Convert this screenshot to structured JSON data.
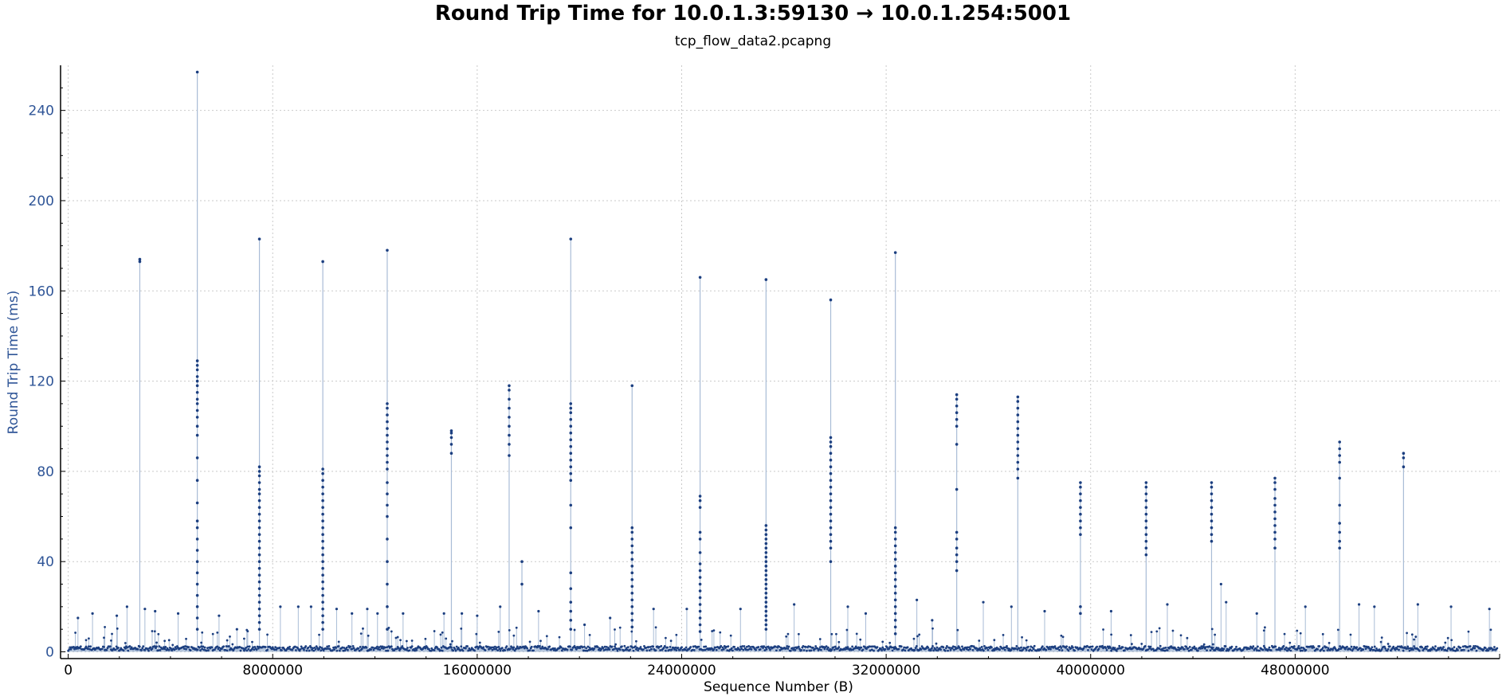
{
  "chart_data": {
    "type": "scatter",
    "title": "Round Trip Time for 10.0.1.3:59130 → 10.0.1.254:5001",
    "subtitle": "tcp_flow_data2.pcapng",
    "xlabel": "Sequence Number (B)",
    "ylabel": "Round Trip Time (ms)",
    "xlim": [
      -300000,
      56000000
    ],
    "ylim": [
      -3,
      260
    ],
    "xticks": [
      0,
      8000000,
      16000000,
      24000000,
      32000000,
      40000000,
      48000000
    ],
    "yticks": [
      0,
      40,
      80,
      120,
      160,
      200,
      240
    ],
    "grid": true,
    "impulse_lines": true,
    "colors": {
      "points": "#1c3f80",
      "stems": "#a9bcd6",
      "grid": "#c9c9c9",
      "ylabel": "#2f5597"
    },
    "baseline": {
      "x_range": [
        0,
        55900000
      ],
      "typical_rtt_ms": 1.5
    },
    "series": [
      {
        "values_note": "",
        "bursts": [
          {
            "x": 2800000,
            "y_values": [
              174,
              173
            ]
          },
          {
            "x": 5050000,
            "y_values": [
              257,
              129,
              127,
              125,
              122,
              120,
              118,
              115,
              112,
              110,
              107,
              104,
              100,
              96,
              86,
              76,
              66,
              58,
              55,
              50,
              45,
              40,
              35,
              30,
              25,
              20,
              15,
              10
            ]
          },
          {
            "x": 7480000,
            "y_values": [
              183,
              82,
              80,
              78,
              75,
              72,
              70,
              67,
              64,
              61,
              58,
              55,
              52,
              49,
              46,
              43,
              40,
              37,
              34,
              31,
              28,
              25,
              22,
              19,
              16,
              13,
              10
            ]
          },
          {
            "x": 9960000,
            "y_values": [
              173,
              81,
              79,
              76,
              73,
              70,
              67,
              64,
              61,
              58,
              55,
              52,
              49,
              46,
              43,
              40,
              37,
              34,
              31,
              28,
              25,
              22,
              19,
              16,
              13,
              10
            ]
          },
          {
            "x": 12480000,
            "y_values": [
              178,
              110,
              108,
              105,
              102,
              99,
              96,
              93,
              90,
              87,
              84,
              81,
              75,
              70,
              65,
              60,
              50,
              40,
              30,
              20,
              10
            ]
          },
          {
            "x": 14990000,
            "y_values": [
              98,
              97,
              95,
              92,
              88
            ]
          },
          {
            "x": 17250000,
            "y_values": [
              118,
              116,
              112,
              108,
              104,
              100,
              96,
              92,
              87
            ]
          },
          {
            "x": 17750000,
            "y_values": [
              40,
              30
            ]
          },
          {
            "x": 19660000,
            "y_values": [
              183,
              110,
              108,
              106,
              103,
              100,
              97,
              94,
              91,
              88,
              85,
              82,
              79,
              76,
              65,
              55,
              35,
              28,
              22,
              18,
              14,
              10
            ]
          },
          {
            "x": 22060000,
            "y_values": [
              118,
              55,
              53,
              50,
              47,
              44,
              41,
              38,
              35,
              32,
              29,
              26,
              23,
              20,
              17,
              14,
              11
            ]
          },
          {
            "x": 24720000,
            "y_values": [
              166,
              69,
              67,
              64,
              53,
              50,
              44,
              39,
              36,
              33,
              30,
              27,
              24,
              21,
              18,
              15,
              12,
              9
            ]
          },
          {
            "x": 27300000,
            "y_values": [
              165,
              56,
              54,
              52,
              50,
              48,
              46,
              44,
              42,
              40,
              38,
              36,
              34,
              32,
              30,
              28,
              26,
              24,
              22,
              20,
              18,
              16,
              14,
              12,
              10
            ]
          },
          {
            "x": 29830000,
            "y_values": [
              156,
              95,
              93,
              91,
              88,
              85,
              82,
              79,
              76,
              73,
              70,
              67,
              64,
              61,
              58,
              55,
              52,
              49,
              46,
              40
            ]
          },
          {
            "x": 32360000,
            "y_values": [
              177,
              55,
              53,
              50,
              47,
              44,
              41,
              38,
              35,
              32,
              29,
              26,
              23,
              20,
              17,
              14,
              11,
              8
            ]
          },
          {
            "x": 34760000,
            "y_values": [
              114,
              112,
              109,
              106,
              103,
              100,
              92,
              72,
              53,
              50,
              46,
              43,
              40,
              36
            ]
          },
          {
            "x": 37150000,
            "y_values": [
              113,
              111,
              108,
              105,
              102,
              99,
              96,
              93,
              90,
              87,
              84,
              81,
              77
            ]
          },
          {
            "x": 39600000,
            "y_values": [
              75,
              73,
              70,
              67,
              64,
              61,
              58,
              55,
              52,
              20,
              17
            ]
          },
          {
            "x": 42170000,
            "y_values": [
              75,
              73,
              70,
              67,
              64,
              61,
              58,
              55,
              52,
              49,
              46,
              43
            ]
          },
          {
            "x": 44730000,
            "y_values": [
              75,
              73,
              70,
              67,
              64,
              61,
              58,
              55,
              52,
              49
            ]
          },
          {
            "x": 47210000,
            "y_values": [
              77,
              75,
              72,
              68,
              65,
              62,
              59,
              56,
              53,
              50,
              46
            ]
          },
          {
            "x": 49740000,
            "y_values": [
              93,
              90,
              87,
              84,
              77,
              65,
              57,
              53,
              49,
              46
            ]
          },
          {
            "x": 52240000,
            "y_values": [
              88,
              86,
              82
            ]
          }
        ],
        "minor_spikes": [
          {
            "x": 380000,
            "y": 15
          },
          {
            "x": 950000,
            "y": 17
          },
          {
            "x": 1900000,
            "y": 16
          },
          {
            "x": 2300000,
            "y": 20
          },
          {
            "x": 3000000,
            "y": 19
          },
          {
            "x": 3400000,
            "y": 18
          },
          {
            "x": 4300000,
            "y": 17
          },
          {
            "x": 5900000,
            "y": 16
          },
          {
            "x": 6600000,
            "y": 10
          },
          {
            "x": 8300000,
            "y": 20
          },
          {
            "x": 9000000,
            "y": 20
          },
          {
            "x": 9500000,
            "y": 20
          },
          {
            "x": 10500000,
            "y": 19
          },
          {
            "x": 11100000,
            "y": 17
          },
          {
            "x": 11700000,
            "y": 19
          },
          {
            "x": 12100000,
            "y": 17
          },
          {
            "x": 13100000,
            "y": 17
          },
          {
            "x": 14700000,
            "y": 17
          },
          {
            "x": 15400000,
            "y": 17
          },
          {
            "x": 16000000,
            "y": 16
          },
          {
            "x": 16900000,
            "y": 20
          },
          {
            "x": 18400000,
            "y": 18
          },
          {
            "x": 20200000,
            "y": 12
          },
          {
            "x": 21200000,
            "y": 15
          },
          {
            "x": 22900000,
            "y": 19
          },
          {
            "x": 24200000,
            "y": 19
          },
          {
            "x": 26300000,
            "y": 19
          },
          {
            "x": 28400000,
            "y": 21
          },
          {
            "x": 30500000,
            "y": 20
          },
          {
            "x": 31200000,
            "y": 17
          },
          {
            "x": 33200000,
            "y": 23
          },
          {
            "x": 33800000,
            "y": 14
          },
          {
            "x": 35800000,
            "y": 22
          },
          {
            "x": 36900000,
            "y": 20
          },
          {
            "x": 38200000,
            "y": 18
          },
          {
            "x": 40800000,
            "y": 18
          },
          {
            "x": 43000000,
            "y": 21
          },
          {
            "x": 45100000,
            "y": 30
          },
          {
            "x": 45300000,
            "y": 22
          },
          {
            "x": 46500000,
            "y": 17
          },
          {
            "x": 48400000,
            "y": 20
          },
          {
            "x": 50500000,
            "y": 21
          },
          {
            "x": 51100000,
            "y": 20
          },
          {
            "x": 52800000,
            "y": 21
          },
          {
            "x": 54100000,
            "y": 20
          },
          {
            "x": 55600000,
            "y": 19
          }
        ]
      }
    ]
  }
}
